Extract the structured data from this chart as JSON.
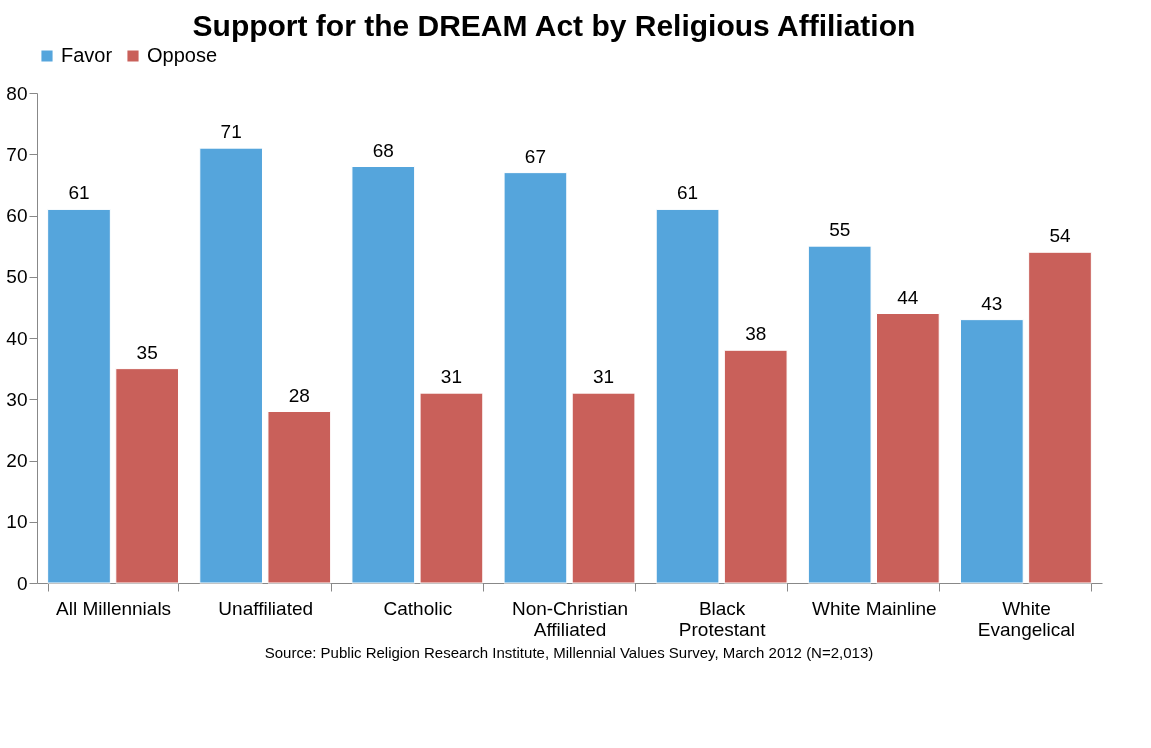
{
  "chart_data": {
    "type": "bar",
    "title": "Support for the DREAM Act by Religious Affiliation",
    "categories": [
      "All Millennials",
      "Unaffiliated",
      "Catholic",
      "Non-Christian\nAffiliated",
      "Black\nProtestant",
      "White Mainline",
      "White\nEvangelical"
    ],
    "series": [
      {
        "name": "Favor",
        "color": "#55a5dc",
        "values": [
          61,
          71,
          68,
          67,
          61,
          55,
          43
        ]
      },
      {
        "name": "Oppose",
        "color": "#c9605a",
        "values": [
          35,
          28,
          31,
          31,
          38,
          44,
          54
        ]
      }
    ],
    "ylim": [
      0,
      80
    ],
    "yticks": [
      0,
      10,
      20,
      30,
      40,
      50,
      60,
      70,
      80
    ],
    "grid": false,
    "legend": "top",
    "data_labels": true,
    "annotations": [
      "Source: Public Religion Research Institute, Millennial Values Survey, March 2012 (N=2,013)"
    ]
  }
}
